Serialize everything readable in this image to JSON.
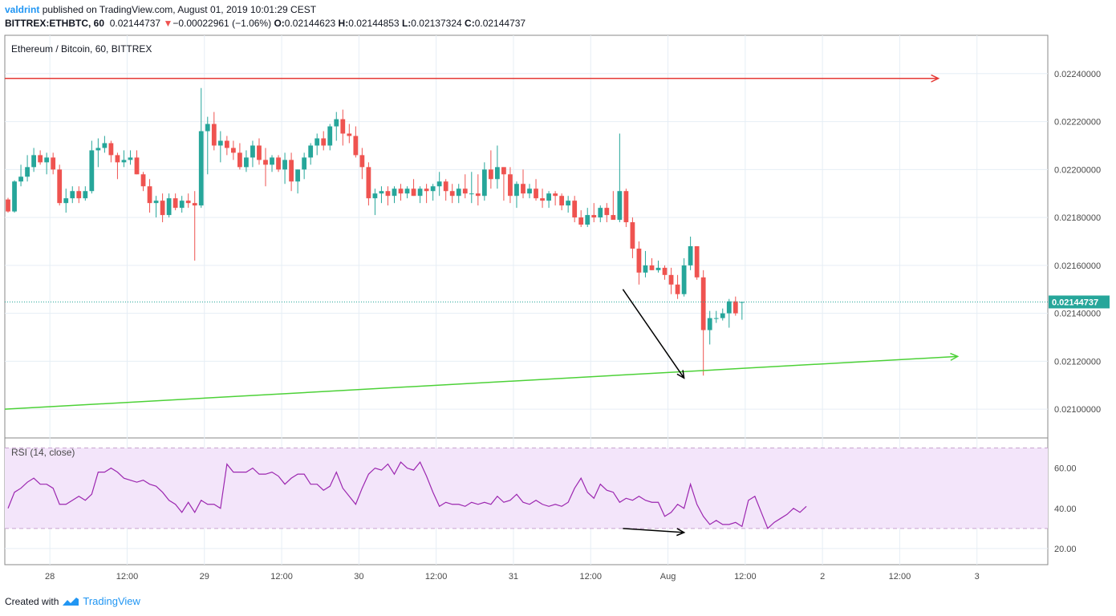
{
  "header": {
    "publisher": "valdrint",
    "published_text": "published on TradingView.com, August 01, 2019 10:01:29 CEST",
    "symbol": "BITTREX:ETHBTC, 60",
    "last": "0.02144737",
    "change_arrow": "▼",
    "change": "−0.00022961 (−1.06%)",
    "o_label": "O:",
    "o": "0.02144623",
    "h_label": "H:",
    "h": "0.02144853",
    "l_label": "L:",
    "l": "0.02137324",
    "c_label": "C:",
    "c": "0.02144737"
  },
  "footer": {
    "created_with": "Created with",
    "brand": "TradingView"
  },
  "colors": {
    "up": "#26a69a",
    "down": "#ef5350",
    "rsi": "#9c27b0",
    "rsi_band": "#f3e5fa",
    "resistance": "#e53935",
    "support": "#4cd137",
    "price_label_bg": "#26a69a"
  },
  "chart_data": [
    {
      "type": "candlestick",
      "title": "Ethereum / Bitcoin, 60, BITTREX",
      "ylim": [
        0.02088,
        0.02256
      ],
      "y_ticks": [
        "0.02100000",
        "0.02120000",
        "0.02140000",
        "0.02160000",
        "0.02180000",
        "0.02200000",
        "0.02220000",
        "0.02240000"
      ],
      "y_tick_values": [
        0.021,
        0.0212,
        0.0214,
        0.0216,
        0.0218,
        0.022,
        0.0222,
        0.0224
      ],
      "x_ticks": [
        "28",
        "12:00",
        "29",
        "12:00",
        "30",
        "12:00",
        "31",
        "12:00",
        "Aug",
        "12:00",
        "2",
        "12:00",
        "3"
      ],
      "x_tick_hours": [
        0,
        12,
        24,
        36,
        48,
        60,
        72,
        84,
        96,
        108,
        120,
        132,
        144
      ],
      "x_range_hours": [
        -7,
        155
      ],
      "first_candle_hour": -6.5,
      "last_price": 0.02144737,
      "last_price_label": "0.02144737",
      "candles": [
        [
          0.021875,
          0.021882,
          0.02182,
          0.021825
        ],
        [
          0.021825,
          0.021955,
          0.02182,
          0.02195
        ],
        [
          0.02195,
          0.02202,
          0.02193,
          0.02197
        ],
        [
          0.02197,
          0.02206,
          0.02195,
          0.02201
        ],
        [
          0.02201,
          0.02209,
          0.02199,
          0.02206
        ],
        [
          0.02206,
          0.02208,
          0.02202,
          0.02203
        ],
        [
          0.02203,
          0.02207,
          0.02198,
          0.02205
        ],
        [
          0.02205,
          0.02207,
          0.02198,
          0.022
        ],
        [
          0.022,
          0.02202,
          0.02185,
          0.02186
        ],
        [
          0.02186,
          0.02192,
          0.02182,
          0.02188
        ],
        [
          0.02188,
          0.02193,
          0.02186,
          0.02191
        ],
        [
          0.02191,
          0.02193,
          0.02186,
          0.02188
        ],
        [
          0.02188,
          0.02193,
          0.02187,
          0.02191
        ],
        [
          0.02191,
          0.02212,
          0.0219,
          0.02208
        ],
        [
          0.02208,
          0.02213,
          0.02201,
          0.02209
        ],
        [
          0.02209,
          0.02214,
          0.02207,
          0.02211
        ],
        [
          0.02211,
          0.02212,
          0.02203,
          0.02206
        ],
        [
          0.02206,
          0.02207,
          0.02196,
          0.02203
        ],
        [
          0.02203,
          0.02208,
          0.02201,
          0.02204
        ],
        [
          0.02204,
          0.02208,
          0.02202,
          0.02205
        ],
        [
          0.02205,
          0.02208,
          0.02198,
          0.02198
        ],
        [
          0.02198,
          0.02199,
          0.02191,
          0.02193
        ],
        [
          0.02193,
          0.02196,
          0.02182,
          0.02186
        ],
        [
          0.02186,
          0.02189,
          0.0218,
          0.02187
        ],
        [
          0.02187,
          0.0219,
          0.02178,
          0.02181
        ],
        [
          0.02181,
          0.0219,
          0.0218,
          0.02188
        ],
        [
          0.02188,
          0.0219,
          0.02183,
          0.02184
        ],
        [
          0.02184,
          0.02189,
          0.02182,
          0.02187
        ],
        [
          0.02187,
          0.0219,
          0.02184,
          0.02186
        ],
        [
          0.02186,
          0.02191,
          0.02162,
          0.02185
        ],
        [
          0.02185,
          0.02234,
          0.02184,
          0.02216
        ],
        [
          0.02216,
          0.02222,
          0.02198,
          0.02219
        ],
        [
          0.02219,
          0.02224,
          0.02208,
          0.0221
        ],
        [
          0.0221,
          0.02216,
          0.02203,
          0.02212
        ],
        [
          0.02212,
          0.02214,
          0.02206,
          0.02209
        ],
        [
          0.02209,
          0.02212,
          0.02204,
          0.02207
        ],
        [
          0.02207,
          0.02211,
          0.022,
          0.02201
        ],
        [
          0.02201,
          0.02208,
          0.02199,
          0.02205
        ],
        [
          0.02205,
          0.02212,
          0.02201,
          0.0221
        ],
        [
          0.0221,
          0.02213,
          0.02202,
          0.02204
        ],
        [
          0.02204,
          0.02209,
          0.02193,
          0.02202
        ],
        [
          0.02202,
          0.02206,
          0.02199,
          0.02205
        ],
        [
          0.02205,
          0.02206,
          0.02199,
          0.022
        ],
        [
          0.022,
          0.02207,
          0.02194,
          0.02204
        ],
        [
          0.02204,
          0.02207,
          0.02191,
          0.02195
        ],
        [
          0.02195,
          0.022,
          0.0219,
          0.022
        ],
        [
          0.022,
          0.02207,
          0.02196,
          0.02205
        ],
        [
          0.02205,
          0.02211,
          0.02202,
          0.0221
        ],
        [
          0.0221,
          0.02215,
          0.02206,
          0.02213
        ],
        [
          0.02213,
          0.02216,
          0.02208,
          0.0221
        ],
        [
          0.0221,
          0.02219,
          0.02208,
          0.02218
        ],
        [
          0.02218,
          0.02224,
          0.02212,
          0.02221
        ],
        [
          0.02221,
          0.02225,
          0.0221,
          0.02215
        ],
        [
          0.02215,
          0.02219,
          0.02211,
          0.02214
        ],
        [
          0.02214,
          0.02218,
          0.02205,
          0.02206
        ],
        [
          0.02206,
          0.02209,
          0.02196,
          0.02201
        ],
        [
          0.02201,
          0.02203,
          0.02185,
          0.02188
        ],
        [
          0.02188,
          0.02192,
          0.02181,
          0.0219
        ],
        [
          0.0219,
          0.02193,
          0.02186,
          0.02191
        ],
        [
          0.02191,
          0.02193,
          0.02185,
          0.02189
        ],
        [
          0.02189,
          0.02193,
          0.02186,
          0.02192
        ],
        [
          0.02192,
          0.02194,
          0.02187,
          0.0219
        ],
        [
          0.0219,
          0.02193,
          0.02188,
          0.02192
        ],
        [
          0.02192,
          0.02196,
          0.02189,
          0.02189
        ],
        [
          0.02189,
          0.02193,
          0.02186,
          0.02192
        ],
        [
          0.02192,
          0.02194,
          0.02186,
          0.02191
        ],
        [
          0.02191,
          0.02194,
          0.02187,
          0.02193
        ],
        [
          0.02193,
          0.02199,
          0.02189,
          0.02195
        ],
        [
          0.02195,
          0.02196,
          0.02187,
          0.02191
        ],
        [
          0.02191,
          0.02194,
          0.02186,
          0.02189
        ],
        [
          0.02189,
          0.02194,
          0.02186,
          0.02192
        ],
        [
          0.02192,
          0.02198,
          0.02188,
          0.0219
        ],
        [
          0.0219,
          0.02199,
          0.02186,
          0.0219
        ],
        [
          0.0219,
          0.02198,
          0.02185,
          0.02189
        ],
        [
          0.02189,
          0.02203,
          0.02187,
          0.022
        ],
        [
          0.022,
          0.02208,
          0.02192,
          0.02196
        ],
        [
          0.02196,
          0.0221,
          0.02192,
          0.02201
        ],
        [
          0.02201,
          0.02201,
          0.02187,
          0.02198
        ],
        [
          0.02198,
          0.02201,
          0.02186,
          0.02189
        ],
        [
          0.02189,
          0.02195,
          0.02184,
          0.02194
        ],
        [
          0.02194,
          0.022,
          0.02188,
          0.0219
        ],
        [
          0.0219,
          0.02194,
          0.02188,
          0.02192
        ],
        [
          0.02192,
          0.02196,
          0.02187,
          0.02188
        ],
        [
          0.02188,
          0.02192,
          0.02184,
          0.02187
        ],
        [
          0.02187,
          0.02191,
          0.02184,
          0.0219
        ],
        [
          0.0219,
          0.02191,
          0.02185,
          0.02189
        ],
        [
          0.02189,
          0.0219,
          0.02183,
          0.02185
        ],
        [
          0.02185,
          0.02189,
          0.02182,
          0.02187
        ],
        [
          0.02187,
          0.02189,
          0.02178,
          0.0218
        ],
        [
          0.0218,
          0.02183,
          0.02176,
          0.02177
        ],
        [
          0.02177,
          0.02184,
          0.02176,
          0.02181
        ],
        [
          0.02181,
          0.02186,
          0.02178,
          0.0218
        ],
        [
          0.0218,
          0.02185,
          0.02178,
          0.02184
        ],
        [
          0.02184,
          0.02186,
          0.02178,
          0.02181
        ],
        [
          0.02181,
          0.02191,
          0.0218,
          0.02179
        ],
        [
          0.02179,
          0.02215,
          0.02178,
          0.02191
        ],
        [
          0.02191,
          0.02192,
          0.02176,
          0.02178
        ],
        [
          0.02178,
          0.0218,
          0.02163,
          0.02167
        ],
        [
          0.02167,
          0.0217,
          0.02152,
          0.02157
        ],
        [
          0.02157,
          0.02166,
          0.02155,
          0.0216
        ],
        [
          0.0216,
          0.02163,
          0.02158,
          0.02158
        ],
        [
          0.02158,
          0.02162,
          0.02157,
          0.02159
        ],
        [
          0.02159,
          0.0216,
          0.02154,
          0.02156
        ],
        [
          0.02156,
          0.02159,
          0.02148,
          0.02152
        ],
        [
          0.02152,
          0.02156,
          0.02146,
          0.02148
        ],
        [
          0.02148,
          0.02163,
          0.02147,
          0.0216
        ],
        [
          0.0216,
          0.02172,
          0.02158,
          0.02168
        ],
        [
          0.02168,
          0.02168,
          0.02154,
          0.02155
        ],
        [
          0.02155,
          0.02158,
          0.02114,
          0.02133
        ],
        [
          0.02133,
          0.02141,
          0.02127,
          0.02138
        ],
        [
          0.02138,
          0.02141,
          0.02136,
          0.02138
        ],
        [
          0.02138,
          0.02142,
          0.02137,
          0.0214
        ],
        [
          0.0214,
          0.02146,
          0.02134,
          0.02145
        ],
        [
          0.02145,
          0.02147,
          0.02139,
          0.0214
        ],
        [
          0.02144623,
          0.02144853,
          0.02137324,
          0.02144737
        ]
      ],
      "annotations": {
        "resistance_line": {
          "from_hour": -7,
          "to_hour": 138,
          "price": 0.02238
        },
        "support_line": {
          "from_hour": -7,
          "to_hour": 141,
          "price_from": 0.021,
          "price_to": 0.02122
        },
        "divergence_arrow": {
          "from_hour": 89,
          "from_price": 0.0215,
          "to_hour": 98.5,
          "to_price": 0.02113
        }
      }
    },
    {
      "type": "line",
      "title": "RSI (14, close)",
      "ylim": [
        12,
        75
      ],
      "y_ticks": [
        "20.00",
        "40.00",
        "60.00"
      ],
      "y_tick_values": [
        20,
        40,
        60
      ],
      "band": [
        30,
        70
      ],
      "first_hour": -6.5,
      "values": [
        40,
        48,
        50,
        53,
        55,
        52,
        52,
        50,
        42,
        42,
        44,
        46,
        44,
        47,
        58,
        58,
        60,
        58,
        55,
        54,
        53,
        54,
        52,
        51,
        48,
        44,
        42,
        38,
        43,
        38,
        44,
        42,
        42,
        40,
        62,
        58,
        58,
        58,
        60,
        57,
        57,
        58,
        56,
        52,
        55,
        57,
        57,
        52,
        52,
        49,
        51,
        58,
        50,
        46,
        42,
        50,
        57,
        60,
        59,
        62,
        57,
        63,
        60,
        59,
        63,
        56,
        48,
        41,
        43,
        42,
        42,
        41,
        43,
        42,
        43,
        42,
        46,
        43,
        44,
        47,
        43,
        42,
        44,
        42,
        41,
        42,
        41,
        43,
        50,
        55,
        48,
        45,
        52,
        49,
        48,
        43,
        45,
        44,
        46,
        44,
        43,
        43,
        36,
        38,
        42,
        40,
        52,
        42,
        36,
        32,
        34,
        32,
        32,
        33,
        31,
        44,
        46,
        38,
        30,
        33,
        35,
        37,
        40,
        38,
        41
      ],
      "divergence_arrow": {
        "from_hour": 89,
        "from_value": 30,
        "to_hour": 98.5,
        "to_value": 28
      }
    }
  ]
}
